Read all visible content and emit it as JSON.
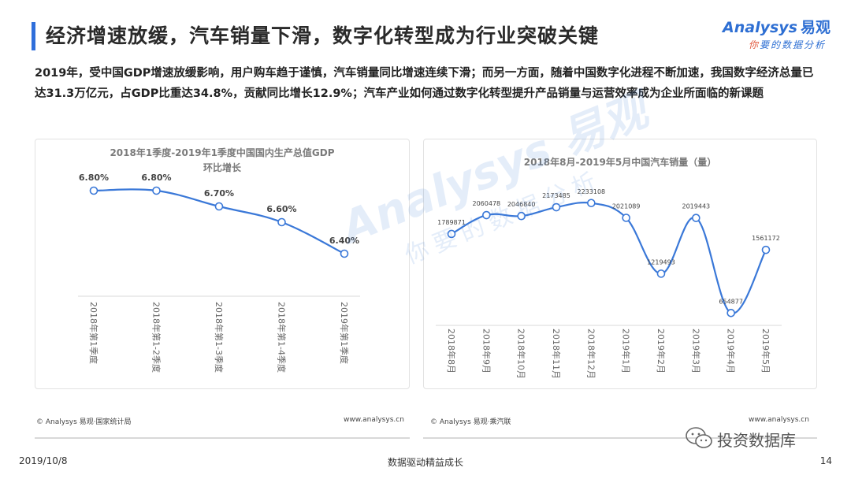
{
  "header": {
    "title": "经济增速放缓，汽车销量下滑，数字化转型成为行业突破关键",
    "logo_en": "Analysys",
    "logo_cn": "易观",
    "logo_tagline_ni": "你",
    "logo_tagline_rest": "要的数据分析",
    "accent_color": "#2f6fdb"
  },
  "intro": {
    "text": "2019年，受中国GDP增速放缓影响，用户购车趋于谨慎，汽车销量同比增速连续下滑；而另一方面，随着中国数字化进程不断加速，我国数字经济总量已达31.3万亿元，占GDP比重达34.8%，贡献同比增长12.9%；汽车产业如何通过数字化转型提升产品销量与运营效率成为企业所面临的新课题"
  },
  "chart_left": {
    "source": "© Analysys 易观·国家统计局",
    "site": "www.analysys.cn"
  },
  "chart_right": {
    "source": "© Analysys 易观·乘汽联",
    "site": "www.analysys.cn"
  },
  "chart_data": [
    {
      "type": "line",
      "title": "2018年1季度-2019年1季度中国国内生产总值GDP",
      "subtitle": "环比增长",
      "categories": [
        "2018年第1季度",
        "2018年第1-2季度",
        "2018年第1-3季度",
        "2018年第1-4季度",
        "2019年第1季度"
      ],
      "values": [
        6.8,
        6.8,
        6.7,
        6.6,
        6.4
      ],
      "labels": [
        "6.80%",
        "6.80%",
        "6.70%",
        "6.60%",
        "6.40%"
      ],
      "ylim": [
        6.3,
        6.85
      ],
      "color": "#3a78d8"
    },
    {
      "type": "line",
      "title": "2018年8月-2019年5月中国汽车销量（量）",
      "categories": [
        "2018年8月",
        "2018年9月",
        "2018年10月",
        "2018年11月",
        "2018年12月",
        "2019年1月",
        "2019年2月",
        "2019年3月",
        "2019年4月",
        "2019年5月"
      ],
      "values": [
        1789871,
        2060478,
        2046840,
        2173485,
        2233108,
        2021089,
        1219493,
        2019443,
        654877,
        1561172
      ],
      "labels": [
        "1789871",
        "2060478",
        "2046840",
        "2173485",
        "2233108",
        "2021089",
        "1219493",
        "2019443",
        "654877",
        "1561172"
      ],
      "ylim": [
        500000,
        2400000
      ],
      "color": "#3a78d8"
    }
  ],
  "footer": {
    "date": "2019/10/8",
    "slogan": "数据驱动精益成长",
    "page": "14",
    "wechat_label": "投资数据库"
  },
  "watermark": {
    "main": "Analysys 易观",
    "sub": "你要的数据分析"
  }
}
